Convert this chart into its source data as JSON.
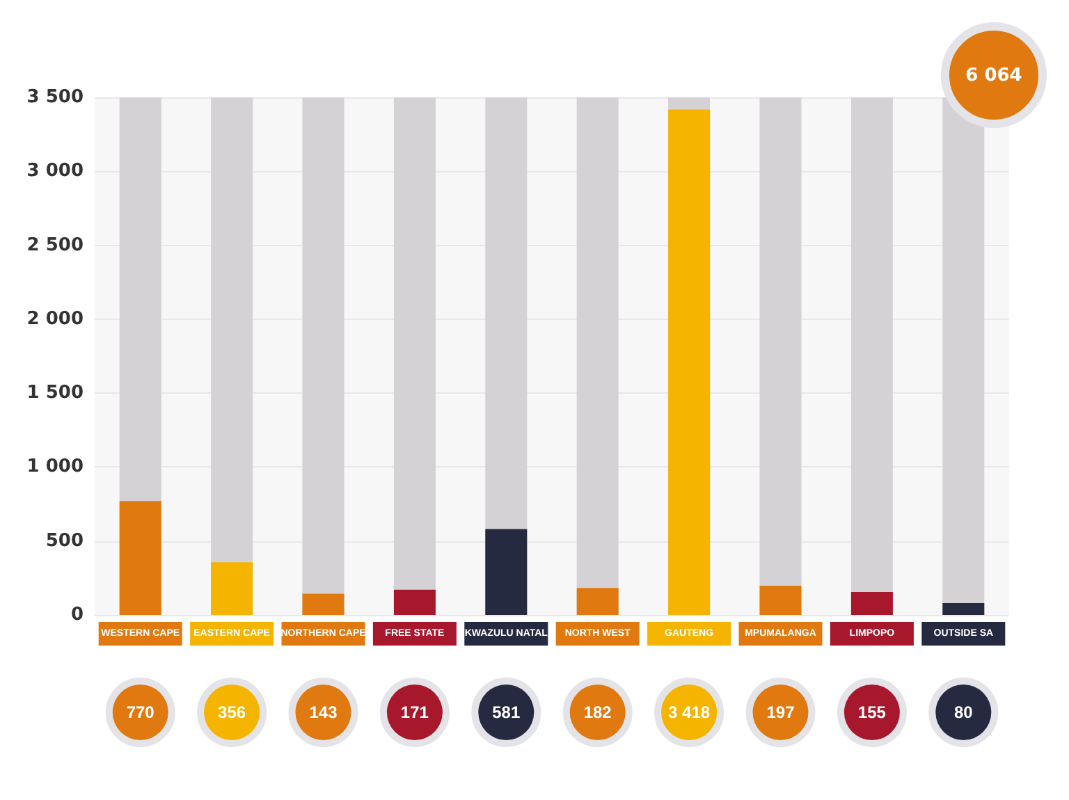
{
  "chart_data": {
    "type": "bar",
    "categories": [
      "WESTERN CAPE",
      "EASTERN CAPE",
      "NORTHERN CAPE",
      "FREE STATE",
      "KWAZULU NATAL",
      "NORTH WEST",
      "GAUTENG",
      "MPUMALANGA",
      "LIMPOPO",
      "OUTSIDE SA"
    ],
    "values": [
      770,
      356,
      143,
      171,
      581,
      182,
      3418,
      197,
      155,
      80
    ],
    "value_labels": [
      "770",
      "356",
      "143",
      "171",
      "581",
      "182",
      "3 418",
      "197",
      "155",
      "80"
    ],
    "colors": [
      "#e07a10",
      "#f5b400",
      "#e07a10",
      "#a8182c",
      "#262a40",
      "#e07a10",
      "#f5b400",
      "#e07a10",
      "#a8182c",
      "#262a40"
    ],
    "ylim": [
      0,
      3500
    ],
    "yticks": [
      {
        "value": 0,
        "label": "0"
      },
      {
        "value": 500,
        "label": "500"
      },
      {
        "value": 1000,
        "label": "1 000"
      },
      {
        "value": 1500,
        "label": "1 500"
      },
      {
        "value": 2000,
        "label": "2 000"
      },
      {
        "value": 2500,
        "label": "2 500"
      },
      {
        "value": 3000,
        "label": "3 000"
      },
      {
        "value": 3500,
        "label": "3 500"
      }
    ],
    "grid": "y",
    "annotations": [
      "6 064"
    ]
  }
}
